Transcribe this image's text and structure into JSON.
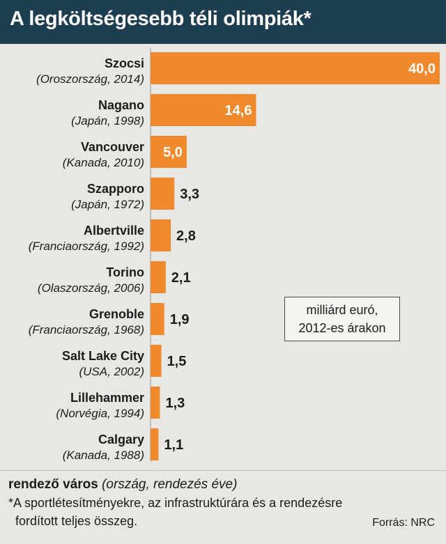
{
  "header": {
    "title": "A legköltségesebb téli olimpiák*"
  },
  "unit_box": {
    "line1": "milliárd euró,",
    "line2": "2012-es árakon"
  },
  "footer": {
    "legend_bold": "rendező város",
    "legend_italic": "(ország, rendezés éve)",
    "note_line1": "*A sportlétesítményekre, az infrastruktúrára és a rendezésre",
    "note_line2": "fordított teljes összeg.",
    "source": "Forrás: NRC"
  },
  "colors": {
    "bar": "#f08a2c",
    "header_bg": "#1d3d51",
    "background": "#e9e7e3"
  },
  "chart_data": {
    "type": "bar",
    "orientation": "horizontal",
    "title": "A legköltségesebb téli olimpiák*",
    "unit": "milliárd euró, 2012-es árakon",
    "categories": [
      "Szocsi",
      "Nagano",
      "Vancouver",
      "Szapporo",
      "Albertville",
      "Torino",
      "Grenoble",
      "Salt Lake City",
      "Lillehammer",
      "Calgary"
    ],
    "subcategories": [
      "(Oroszország, 2014)",
      "(Japán, 1998)",
      "(Kanada, 2010)",
      "(Japán, 1972)",
      "(Franciaország, 1992)",
      "(Olaszország, 2006)",
      "(Franciaország, 1968)",
      "(USA, 2002)",
      "(Norvégia, 1994)",
      "(Kanada, 1988)"
    ],
    "values": [
      40.0,
      14.6,
      5.0,
      3.3,
      2.8,
      2.1,
      1.9,
      1.5,
      1.3,
      1.1
    ],
    "value_labels": [
      "40,0",
      "14,6",
      "5,0",
      "3,3",
      "2,8",
      "2,1",
      "1,9",
      "1,5",
      "1,3",
      "1,1"
    ],
    "xlim": [
      0,
      40
    ],
    "grid": false,
    "legend": "none"
  }
}
